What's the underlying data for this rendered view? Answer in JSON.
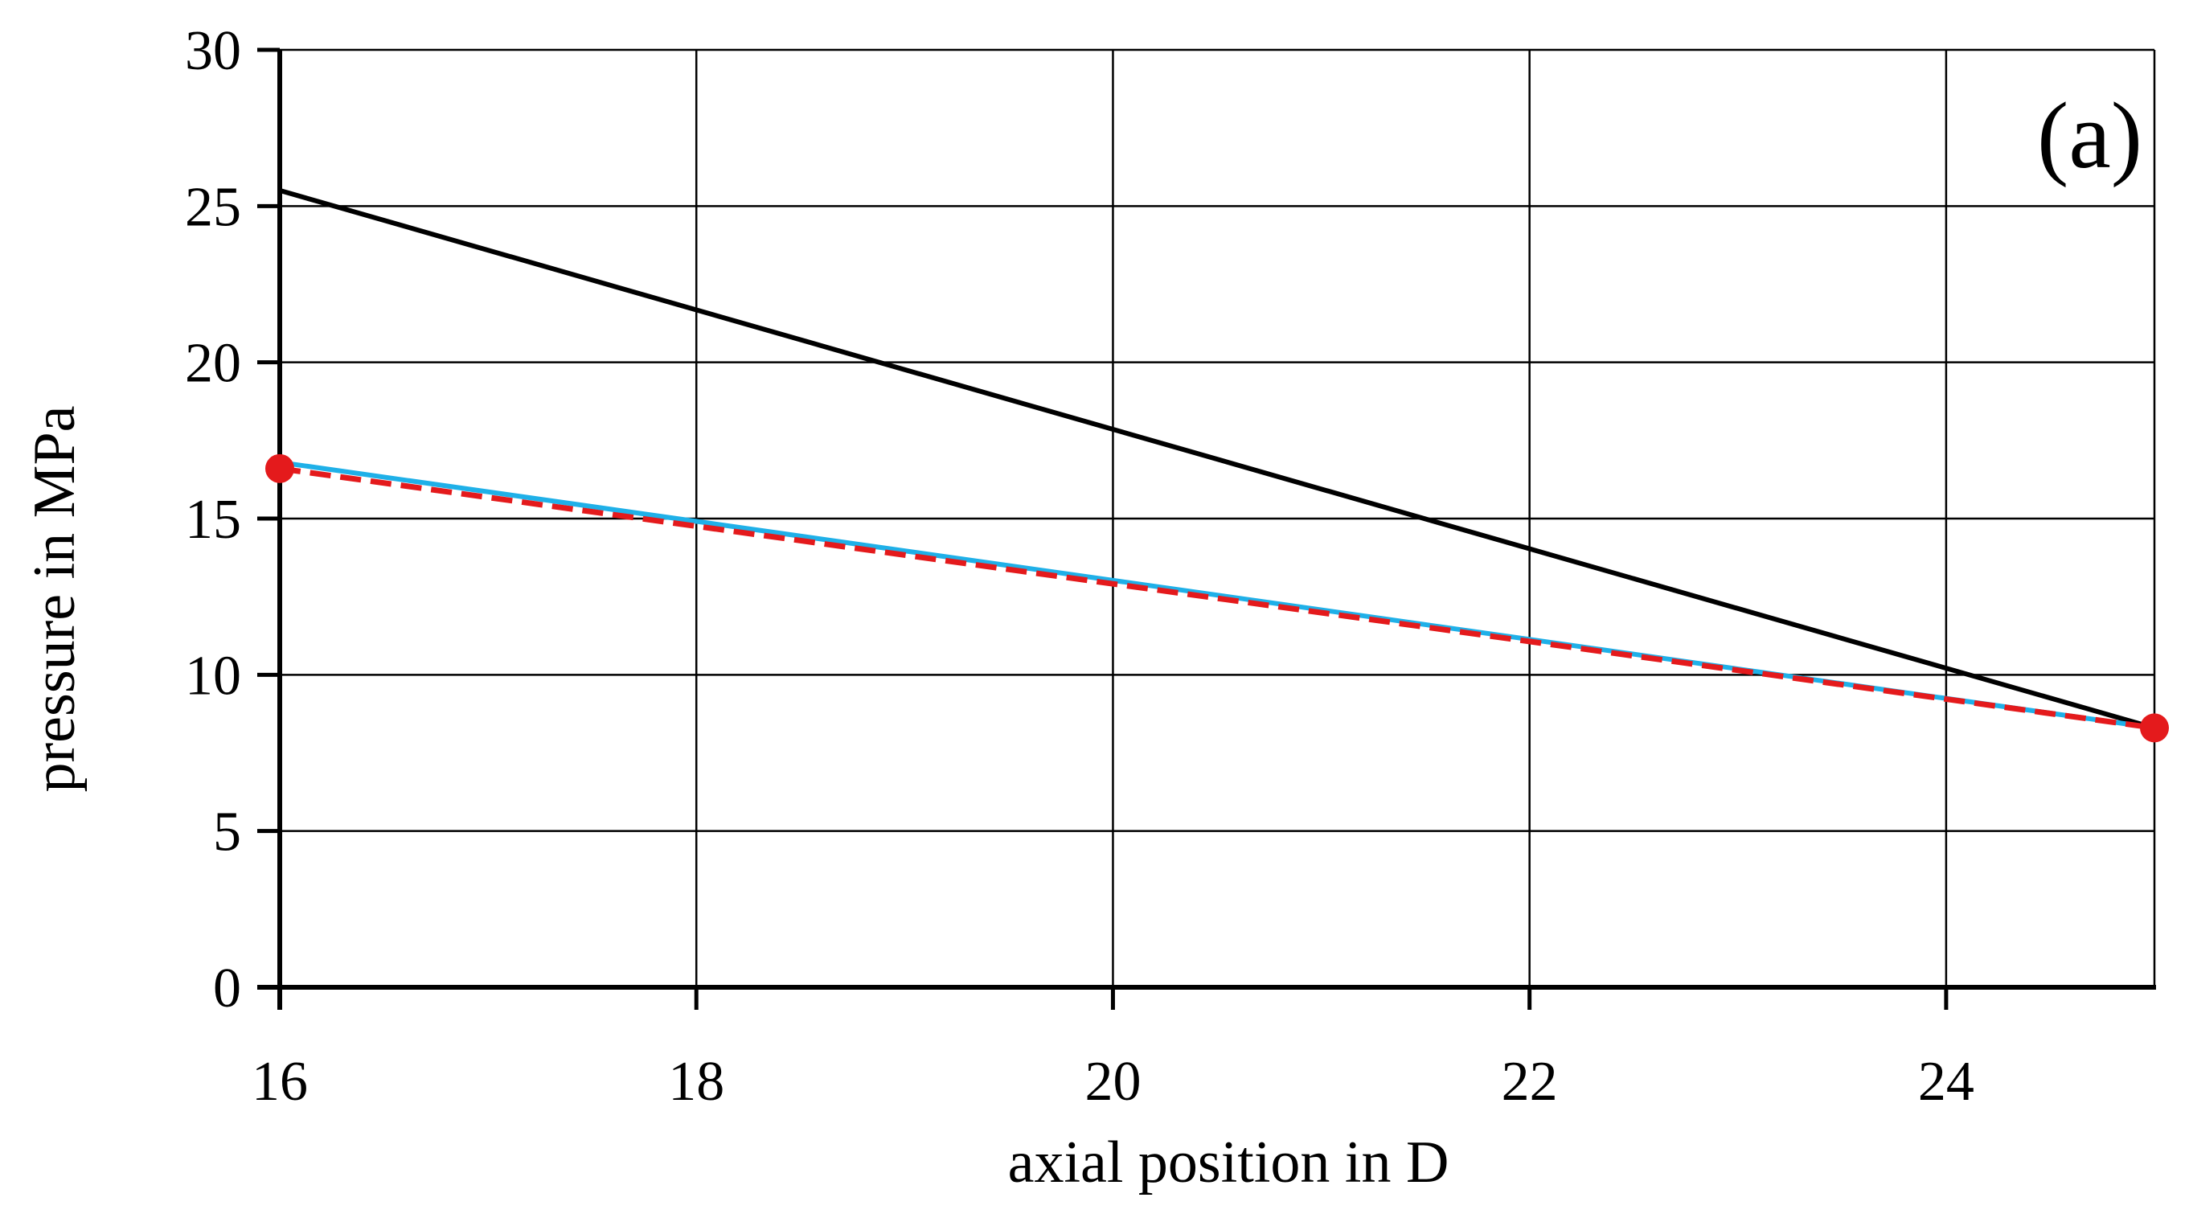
{
  "chart_data": {
    "type": "line",
    "panel_label": "(a)",
    "xlabel": "axial position in D",
    "ylabel": "pressure in MPa",
    "xlim": [
      16,
      25
    ],
    "ylim": [
      0,
      30
    ],
    "x_ticks": [
      16,
      18,
      20,
      22,
      24
    ],
    "y_ticks": [
      0,
      5,
      10,
      15,
      20,
      25,
      30
    ],
    "grid": true,
    "legend": "none",
    "series": [
      {
        "style": "solid",
        "color": "#000000",
        "x": [
          16,
          25
        ],
        "y": [
          25.5,
          8.3
        ]
      },
      {
        "style": "solid",
        "color": "#1fb0e8",
        "x": [
          16,
          25
        ],
        "y": [
          16.8,
          8.3
        ]
      },
      {
        "style": "dashed",
        "color": "#e41a1c",
        "marker": "circle-endpoints",
        "x": [
          16,
          25
        ],
        "y": [
          16.6,
          8.3
        ]
      }
    ]
  }
}
